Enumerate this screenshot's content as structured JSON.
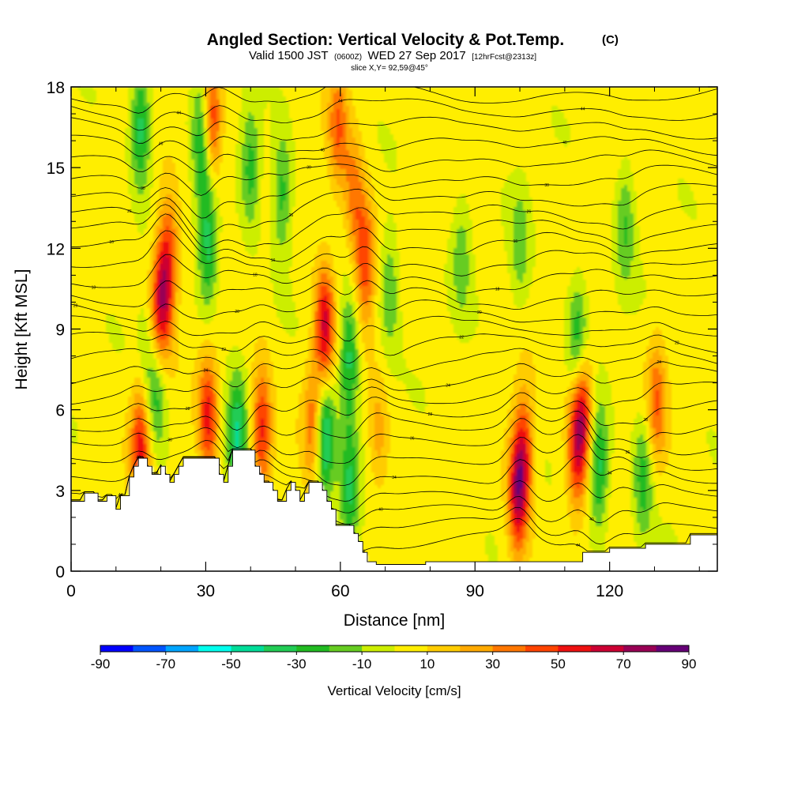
{
  "header": {
    "title": "Angled Section: Vertical Velocity & Pot.Temp.",
    "title_unit": "(C)",
    "valid_prefix": "Valid 1500 JST",
    "valid_utc": "(0600Z)",
    "valid_date": "WED 27 Sep 2017",
    "forecast": "[12hrFcst@2313z]",
    "slice": "slice X,Y= 92,59@45°"
  },
  "chart_data": {
    "type": "heatmap",
    "title": "Angled Section: Vertical Velocity & Pot.Temp. (C)",
    "xlabel": "Distance [nm]",
    "ylabel": "Height [Kft MSL]",
    "xlim": [
      0,
      144
    ],
    "ylim": [
      0,
      18
    ],
    "x_ticks": [
      0,
      30,
      60,
      90,
      120
    ],
    "x_minor_step": 10,
    "y_ticks": [
      0,
      3,
      6,
      9,
      12,
      15,
      18
    ],
    "grid": false,
    "colorbar": {
      "title": "Vertical Velocity [cm/s]",
      "placement": "bottom",
      "boundaries": [
        -90,
        -80,
        -70,
        -60,
        -50,
        -40,
        -30,
        -20,
        -10,
        0,
        10,
        20,
        30,
        40,
        50,
        60,
        70,
        80,
        90
      ],
      "labels": [
        "-90",
        "-70",
        "-50",
        "-30",
        "-10",
        "10",
        "30",
        "50",
        "70",
        "90"
      ],
      "colors": [
        "#0000ff",
        "#0055ff",
        "#00a5ff",
        "#00ffee",
        "#00dd99",
        "#22cc55",
        "#22bb22",
        "#66cc22",
        "#ccee00",
        "#ffee00",
        "#ffcc00",
        "#ffaa00",
        "#ff7700",
        "#ff4400",
        "#ee1111",
        "#cc0033",
        "#990055",
        "#660077"
      ]
    },
    "terrain": [
      [
        0,
        2.6
      ],
      [
        3,
        2.6
      ],
      [
        3,
        2.9
      ],
      [
        6,
        2.9
      ],
      [
        6,
        2.6
      ],
      [
        8,
        2.6
      ],
      [
        8,
        2.8
      ],
      [
        10,
        2.8
      ],
      [
        10,
        2.3
      ],
      [
        11,
        2.3
      ],
      [
        11,
        2.8
      ],
      [
        13,
        2.8
      ],
      [
        13,
        3.5
      ],
      [
        14,
        3.5
      ],
      [
        14,
        3.9
      ],
      [
        15,
        3.9
      ],
      [
        15,
        4.2
      ],
      [
        17,
        4.2
      ],
      [
        17,
        3.9
      ],
      [
        18,
        3.9
      ],
      [
        18,
        3.6
      ],
      [
        20,
        3.6
      ],
      [
        20,
        3.9
      ],
      [
        21,
        3.9
      ],
      [
        21,
        3.6
      ],
      [
        22,
        3.6
      ],
      [
        22,
        3.3
      ],
      [
        23,
        3.3
      ],
      [
        23,
        3.6
      ],
      [
        24,
        3.6
      ],
      [
        24,
        3.9
      ],
      [
        25,
        3.9
      ],
      [
        25,
        4.2
      ],
      [
        33,
        4.2
      ],
      [
        33,
        3.6
      ],
      [
        34,
        3.6
      ],
      [
        34,
        3.3
      ],
      [
        35,
        3.3
      ],
      [
        35,
        3.9
      ],
      [
        36,
        3.9
      ],
      [
        36,
        4.5
      ],
      [
        41,
        4.5
      ],
      [
        41,
        3.9
      ],
      [
        42,
        3.9
      ],
      [
        42,
        3.6
      ],
      [
        43,
        3.6
      ],
      [
        43,
        3.3
      ],
      [
        45,
        3.3
      ],
      [
        45,
        3.0
      ],
      [
        46,
        3.0
      ],
      [
        46,
        2.6
      ],
      [
        48,
        2.6
      ],
      [
        48,
        3.0
      ],
      [
        49,
        3.0
      ],
      [
        49,
        3.3
      ],
      [
        50,
        3.3
      ],
      [
        50,
        3.0
      ],
      [
        51,
        3.0
      ],
      [
        51,
        2.6
      ],
      [
        52,
        2.6
      ],
      [
        52,
        2.9
      ],
      [
        53,
        2.9
      ],
      [
        53,
        3.3
      ],
      [
        56,
        3.3
      ],
      [
        56,
        3.0
      ],
      [
        57,
        3.0
      ],
      [
        57,
        2.6
      ],
      [
        58,
        2.6
      ],
      [
        58,
        2.3
      ],
      [
        59,
        2.3
      ],
      [
        59,
        1.7
      ],
      [
        63,
        1.7
      ],
      [
        63,
        1.4
      ],
      [
        64,
        1.4
      ],
      [
        64,
        1.1
      ],
      [
        65,
        1.1
      ],
      [
        65,
        0.7
      ],
      [
        66,
        0.7
      ],
      [
        66,
        0.35
      ],
      [
        68,
        0.35
      ],
      [
        68,
        0.25
      ],
      [
        79,
        0.25
      ],
      [
        79,
        0.35
      ],
      [
        114,
        0.35
      ],
      [
        114,
        0.7
      ],
      [
        120,
        0.7
      ],
      [
        120,
        0.85
      ],
      [
        128,
        0.85
      ],
      [
        128,
        1.0
      ],
      [
        138,
        1.0
      ],
      [
        138,
        1.35
      ],
      [
        144,
        1.35
      ]
    ],
    "updrafts": [
      {
        "x": 31.0,
        "z": 16.5,
        "peak": 70
      },
      {
        "x": 30.0,
        "z": 14.0,
        "peak": 40
      },
      {
        "x": 20.5,
        "z": 10.3,
        "peak": 55
      },
      {
        "x": 18.5,
        "z": 8.8,
        "peak": 40
      },
      {
        "x": 22.0,
        "z": 12.0,
        "peak": 30
      },
      {
        "x": 15.5,
        "z": 4.6,
        "peak": 50
      },
      {
        "x": 30.5,
        "z": 5.8,
        "peak": 50
      },
      {
        "x": 42.5,
        "z": 5.3,
        "peak": 50
      },
      {
        "x": 56.5,
        "z": 9.0,
        "peak": 60
      },
      {
        "x": 54.0,
        "z": 5.5,
        "peak": 35
      },
      {
        "x": 65.5,
        "z": 11.5,
        "peak": 45
      },
      {
        "x": 59.5,
        "z": 16.5,
        "peak": 35
      },
      {
        "x": 63.0,
        "z": 14.0,
        "peak": 30
      },
      {
        "x": 99.5,
        "z": 2.9,
        "peak": 60
      },
      {
        "x": 101.0,
        "z": 4.5,
        "peak": 40
      },
      {
        "x": 114.0,
        "z": 6.0,
        "peak": 55
      },
      {
        "x": 112.5,
        "z": 4.5,
        "peak": 40
      },
      {
        "x": 130.5,
        "z": 6.3,
        "peak": 35
      },
      {
        "x": 68.5,
        "z": 5.0,
        "peak": 20
      }
    ],
    "downdrafts": [
      {
        "x": 30.0,
        "z": 14.5,
        "peak": -60
      },
      {
        "x": 30.5,
        "z": 12.0,
        "peak": -40
      },
      {
        "x": 29.5,
        "z": 16.5,
        "peak": -40
      },
      {
        "x": 15.5,
        "z": 16.5,
        "peak": -40
      },
      {
        "x": 19.0,
        "z": 6.8,
        "peak": -35
      },
      {
        "x": 17.5,
        "z": 8.5,
        "peak": -30
      },
      {
        "x": 37.0,
        "z": 4.8,
        "peak": -45
      },
      {
        "x": 56.5,
        "z": 5.0,
        "peak": -55
      },
      {
        "x": 40.0,
        "z": 15.0,
        "peak": -30
      },
      {
        "x": 62.0,
        "z": 8.0,
        "peak": -40
      },
      {
        "x": 62.0,
        "z": 3.0,
        "peak": -35
      },
      {
        "x": 47.0,
        "z": 14.0,
        "peak": -30
      },
      {
        "x": 71.0,
        "z": 10.5,
        "peak": -25
      },
      {
        "x": 117.5,
        "z": 3.8,
        "peak": -40
      },
      {
        "x": 113.0,
        "z": 8.5,
        "peak": -35
      },
      {
        "x": 127.5,
        "z": 3.5,
        "peak": -30
      },
      {
        "x": 100.0,
        "z": 12.0,
        "peak": -20
      },
      {
        "x": 87.0,
        "z": 11.8,
        "peak": -20
      },
      {
        "x": 123.5,
        "z": 13.0,
        "peak": -25
      }
    ],
    "isentrope_levels": 28,
    "isentrope_labels": [
      "44",
      "40",
      "34",
      "36",
      "28",
      "24",
      "22",
      "20",
      "18",
      "16",
      "26",
      "30",
      "46"
    ]
  }
}
